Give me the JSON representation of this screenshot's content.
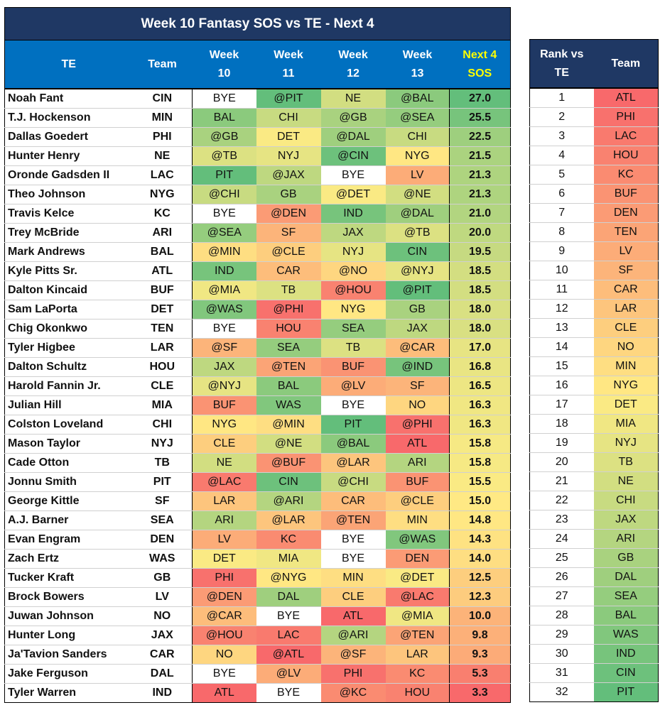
{
  "title": "Week 10 Fantasy SOS vs TE - Next 4",
  "headers": {
    "te": "TE",
    "team": "Team",
    "week": "Week",
    "weeks": [
      "10",
      "11",
      "12",
      "13"
    ],
    "sos_line1": "Next 4",
    "sos_line2": "SOS"
  },
  "rank_headers": {
    "rank_line1": "Rank vs",
    "rank_line2": "TE",
    "team": "Team"
  },
  "players": [
    {
      "name": "Noah Fant",
      "team": "CIN",
      "opps": [
        "BYE",
        "@PIT",
        "NE",
        "@BAL"
      ],
      "sos": "27.0"
    },
    {
      "name": "T.J. Hockenson",
      "team": "MIN",
      "opps": [
        "BAL",
        "CHI",
        "@GB",
        "@SEA"
      ],
      "sos": "25.5"
    },
    {
      "name": "Dallas Goedert",
      "team": "PHI",
      "opps": [
        "@GB",
        "DET",
        "@DAL",
        "CHI"
      ],
      "sos": "22.5"
    },
    {
      "name": "Hunter Henry",
      "team": "NE",
      "opps": [
        "@TB",
        "NYJ",
        "@CIN",
        "NYG"
      ],
      "sos": "21.5"
    },
    {
      "name": "Oronde Gadsden II",
      "team": "LAC",
      "opps": [
        "PIT",
        "@JAX",
        "BYE",
        "LV"
      ],
      "sos": "21.3"
    },
    {
      "name": "Theo Johnson",
      "team": "NYG",
      "opps": [
        "@CHI",
        "GB",
        "@DET",
        "@NE"
      ],
      "sos": "21.3"
    },
    {
      "name": "Travis Kelce",
      "team": "KC",
      "opps": [
        "BYE",
        "@DEN",
        "IND",
        "@DAL"
      ],
      "sos": "21.0"
    },
    {
      "name": "Trey McBride",
      "team": "ARI",
      "opps": [
        "@SEA",
        "SF",
        "JAX",
        "@TB"
      ],
      "sos": "20.0"
    },
    {
      "name": "Mark Andrews",
      "team": "BAL",
      "opps": [
        "@MIN",
        "@CLE",
        "NYJ",
        "CIN"
      ],
      "sos": "19.5"
    },
    {
      "name": "Kyle Pitts Sr.",
      "team": "ATL",
      "opps": [
        "IND",
        "CAR",
        "@NO",
        "@NYJ"
      ],
      "sos": "18.5"
    },
    {
      "name": "Dalton Kincaid",
      "team": "BUF",
      "opps": [
        "@MIA",
        "TB",
        "@HOU",
        "@PIT"
      ],
      "sos": "18.5"
    },
    {
      "name": "Sam LaPorta",
      "team": "DET",
      "opps": [
        "@WAS",
        "@PHI",
        "NYG",
        "GB"
      ],
      "sos": "18.0"
    },
    {
      "name": "Chig Okonkwo",
      "team": "TEN",
      "opps": [
        "BYE",
        "HOU",
        "SEA",
        "JAX"
      ],
      "sos": "18.0"
    },
    {
      "name": "Tyler Higbee",
      "team": "LAR",
      "opps": [
        "@SF",
        "SEA",
        "TB",
        "@CAR"
      ],
      "sos": "17.0"
    },
    {
      "name": "Dalton Schultz",
      "team": "HOU",
      "opps": [
        "JAX",
        "@TEN",
        "BUF",
        "@IND"
      ],
      "sos": "16.8"
    },
    {
      "name": "Harold Fannin Jr.",
      "team": "CLE",
      "opps": [
        "@NYJ",
        "BAL",
        "@LV",
        "SF"
      ],
      "sos": "16.5"
    },
    {
      "name": "Julian Hill",
      "team": "MIA",
      "opps": [
        "BUF",
        "WAS",
        "BYE",
        "NO"
      ],
      "sos": "16.3"
    },
    {
      "name": "Colston Loveland",
      "team": "CHI",
      "opps": [
        "NYG",
        "@MIN",
        "PIT",
        "@PHI"
      ],
      "sos": "16.3"
    },
    {
      "name": "Mason Taylor",
      "team": "NYJ",
      "opps": [
        "CLE",
        "@NE",
        "@BAL",
        "ATL"
      ],
      "sos": "15.8"
    },
    {
      "name": "Cade Otton",
      "team": "TB",
      "opps": [
        "NE",
        "@BUF",
        "@LAR",
        "ARI"
      ],
      "sos": "15.8"
    },
    {
      "name": "Jonnu Smith",
      "team": "PIT",
      "opps": [
        "@LAC",
        "CIN",
        "@CHI",
        "BUF"
      ],
      "sos": "15.5"
    },
    {
      "name": "George Kittle",
      "team": "SF",
      "opps": [
        "LAR",
        "@ARI",
        "CAR",
        "@CLE"
      ],
      "sos": "15.0"
    },
    {
      "name": "A.J. Barner",
      "team": "SEA",
      "opps": [
        "ARI",
        "@LAR",
        "@TEN",
        "MIN"
      ],
      "sos": "14.8"
    },
    {
      "name": "Evan Engram",
      "team": "DEN",
      "opps": [
        "LV",
        "KC",
        "BYE",
        "@WAS"
      ],
      "sos": "14.3"
    },
    {
      "name": "Zach Ertz",
      "team": "WAS",
      "opps": [
        "DET",
        "MIA",
        "BYE",
        "DEN"
      ],
      "sos": "14.0"
    },
    {
      "name": "Tucker Kraft",
      "team": "GB",
      "opps": [
        "PHI",
        "@NYG",
        "MIN",
        "@DET"
      ],
      "sos": "12.5"
    },
    {
      "name": "Brock Bowers",
      "team": "LV",
      "opps": [
        "@DEN",
        "DAL",
        "CLE",
        "@LAC"
      ],
      "sos": "12.3"
    },
    {
      "name": "Juwan Johnson",
      "team": "NO",
      "opps": [
        "@CAR",
        "BYE",
        "ATL",
        "@MIA"
      ],
      "sos": "10.0"
    },
    {
      "name": "Hunter Long",
      "team": "JAX",
      "opps": [
        "@HOU",
        "LAC",
        "@ARI",
        "@TEN"
      ],
      "sos": "9.8"
    },
    {
      "name": "Ja'Tavion Sanders",
      "team": "CAR",
      "opps": [
        "NO",
        "@ATL",
        "@SF",
        "LAR"
      ],
      "sos": "9.3"
    },
    {
      "name": "Jake Ferguson",
      "team": "DAL",
      "opps": [
        "BYE",
        "@LV",
        "PHI",
        "KC"
      ],
      "sos": "5.3"
    },
    {
      "name": "Tyler Warren",
      "team": "IND",
      "opps": [
        "ATL",
        "BYE",
        "@KC",
        "HOU"
      ],
      "sos": "3.3"
    }
  ],
  "rankings": [
    {
      "rank": "1",
      "team": "ATL"
    },
    {
      "rank": "2",
      "team": "PHI"
    },
    {
      "rank": "3",
      "team": "LAC"
    },
    {
      "rank": "4",
      "team": "HOU"
    },
    {
      "rank": "5",
      "team": "KC"
    },
    {
      "rank": "6",
      "team": "BUF"
    },
    {
      "rank": "7",
      "team": "DEN"
    },
    {
      "rank": "8",
      "team": "TEN"
    },
    {
      "rank": "9",
      "team": "LV"
    },
    {
      "rank": "10",
      "team": "SF"
    },
    {
      "rank": "11",
      "team": "CAR"
    },
    {
      "rank": "12",
      "team": "LAR"
    },
    {
      "rank": "13",
      "team": "CLE"
    },
    {
      "rank": "14",
      "team": "NO"
    },
    {
      "rank": "15",
      "team": "MIN"
    },
    {
      "rank": "16",
      "team": "NYG"
    },
    {
      "rank": "17",
      "team": "DET"
    },
    {
      "rank": "18",
      "team": "MIA"
    },
    {
      "rank": "19",
      "team": "NYJ"
    },
    {
      "rank": "20",
      "team": "TB"
    },
    {
      "rank": "21",
      "team": "NE"
    },
    {
      "rank": "22",
      "team": "CHI"
    },
    {
      "rank": "23",
      "team": "JAX"
    },
    {
      "rank": "24",
      "team": "ARI"
    },
    {
      "rank": "25",
      "team": "GB"
    },
    {
      "rank": "26",
      "team": "DAL"
    },
    {
      "rank": "27",
      "team": "SEA"
    },
    {
      "rank": "28",
      "team": "BAL"
    },
    {
      "rank": "29",
      "team": "WAS"
    },
    {
      "rank": "30",
      "team": "IND"
    },
    {
      "rank": "31",
      "team": "CIN"
    },
    {
      "rank": "32",
      "team": "PIT"
    }
  ],
  "colors": {
    "title_bg": "#1f3864",
    "header_bg": "#0070c0",
    "sos_header_text": "#ffff00",
    "rank_header_bg": "#1f3864",
    "scale_low": "#f8696b",
    "scale_mid": "#ffeb84",
    "scale_high": "#63be7b",
    "bye": "#ffffff"
  }
}
